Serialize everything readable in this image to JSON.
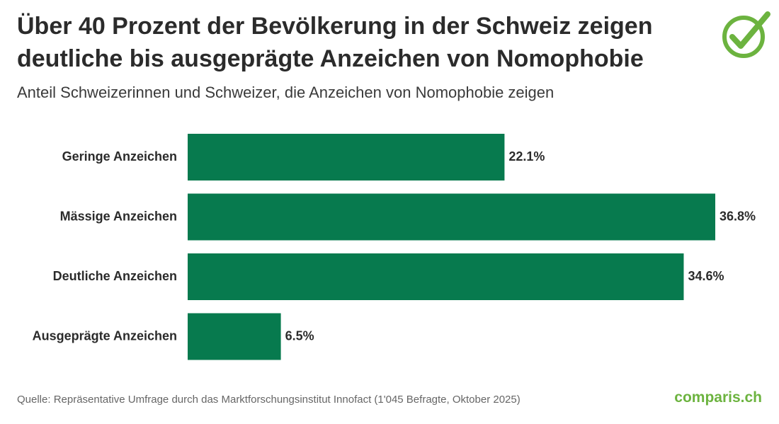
{
  "chart_data": {
    "type": "bar",
    "orientation": "horizontal",
    "title": "Über 40 Prozent der Bevölkerung in der Schweiz zeigen deutliche bis ausgeprägte Anzeichen von Nomophobie",
    "subtitle": "Anteil Schweizerinnen und Schweizer, die Anzeichen von Nomophobie zeigen",
    "categories": [
      "Geringe Anzeichen",
      "Mässige Anzeichen",
      "Deutliche Anzeichen",
      "Ausgeprägte Anzeichen"
    ],
    "values": [
      22.1,
      36.8,
      34.6,
      6.5
    ],
    "value_labels": [
      "22.1%",
      "36.8%",
      "34.6%",
      "6.5%"
    ],
    "color": "#077a4e",
    "source": "Quelle: Repräsentative Umfrage durch das Marktforschungsinstitut Innofact (1'045 Befragte, Oktober 2025)",
    "brand": "comparis.ch"
  }
}
